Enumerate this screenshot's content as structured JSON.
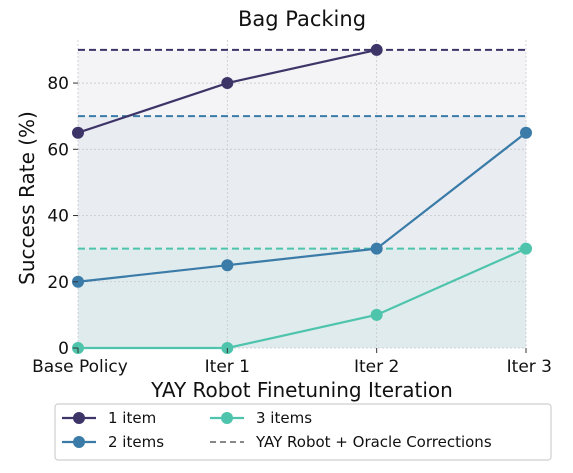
{
  "chart_data": {
    "type": "line",
    "title": "Bag Packing",
    "xlabel": "YAY Robot Finetuning Iteration",
    "ylabel": "Success Rate (%)",
    "categories": [
      "Base Policy",
      "Iter 1",
      "Iter 2",
      "Iter 3"
    ],
    "ylim": [
      0,
      93
    ],
    "yticks": [
      0,
      20,
      40,
      60,
      80
    ],
    "grid": true,
    "legend_position": "bottom",
    "series": [
      {
        "name": "1 item",
        "values": [
          65,
          80,
          90,
          null
        ],
        "color": "#3d3568",
        "oracle": 90
      },
      {
        "name": "2 items",
        "values": [
          20,
          25,
          30,
          65
        ],
        "color": "#3a7ba8",
        "oracle": 70
      },
      {
        "name": "3 items",
        "values": [
          0,
          0,
          10,
          30
        ],
        "color": "#4ec4ad",
        "oracle": 30
      }
    ],
    "reference_line_label": "YAY Robot + Oracle Corrections",
    "reference_line_color": "#888888"
  }
}
